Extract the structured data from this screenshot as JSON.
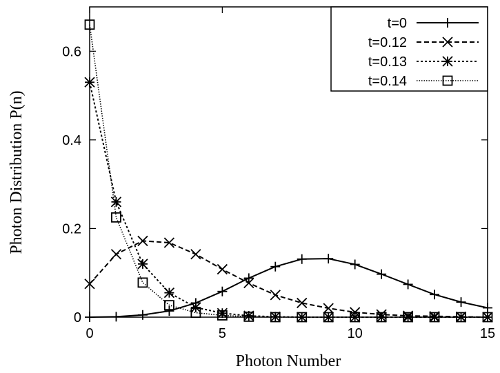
{
  "chart_data": {
    "type": "line",
    "xlabel": "Photon Number",
    "ylabel": "Photon Distribution P(n)",
    "xlim": [
      0,
      15
    ],
    "ylim": [
      0,
      0.7
    ],
    "xticks": [
      "0",
      "5",
      "10",
      "15"
    ],
    "yticks": [
      "0",
      "0.2",
      "0.4",
      "0.6"
    ],
    "legend_position": "top-right",
    "grid": false,
    "x": [
      0,
      1,
      2,
      3,
      4,
      5,
      6,
      7,
      8,
      9,
      10,
      11,
      12,
      13,
      14,
      15
    ],
    "series": [
      {
        "name": "t=0",
        "line": "solid",
        "marker": "plus",
        "values": [
          0.0,
          0.001,
          0.005,
          0.014,
          0.032,
          0.058,
          0.088,
          0.114,
          0.131,
          0.132,
          0.119,
          0.097,
          0.074,
          0.051,
          0.034,
          0.021
        ]
      },
      {
        "name": "t=0.12",
        "line": "dashed",
        "marker": "x",
        "values": [
          0.075,
          0.142,
          0.172,
          0.168,
          0.142,
          0.108,
          0.077,
          0.05,
          0.032,
          0.02,
          0.011,
          0.006,
          0.003,
          0.002,
          0.001,
          0.0
        ]
      },
      {
        "name": "t=0.13",
        "line": "dotted",
        "marker": "star",
        "values": [
          0.53,
          0.26,
          0.12,
          0.055,
          0.022,
          0.009,
          0.003,
          0.001,
          0.0,
          0.0,
          0.0,
          0.0,
          0.0,
          0.0,
          0.0,
          0.0
        ]
      },
      {
        "name": "t=0.14",
        "line": "densedotted",
        "marker": "square",
        "values": [
          0.66,
          0.225,
          0.078,
          0.027,
          0.01,
          0.004,
          0.001,
          0.0,
          0.0,
          0.0,
          0.0,
          0.0,
          0.0,
          0.0,
          0.0,
          0.0
        ]
      }
    ]
  }
}
